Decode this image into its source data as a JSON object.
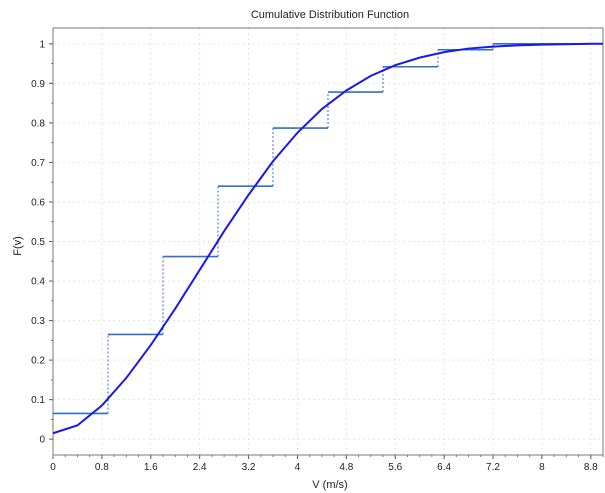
{
  "chart_data": {
    "type": "line",
    "title": "Cumulative Distribution Function",
    "xlabel": "V (m/s)",
    "ylabel": "F(v)",
    "xlim": [
      0,
      9.0
    ],
    "ylim": [
      -0.04,
      1.04
    ],
    "x_ticks": [
      "0",
      "0.8",
      "1.6",
      "2.4",
      "3.2",
      "4",
      "4.8",
      "5.6",
      "6.4",
      "7.2",
      "8",
      "8.8"
    ],
    "y_ticks": [
      "0",
      "0.1",
      "0.2",
      "0.3",
      "0.4",
      "0.5",
      "0.6",
      "0.7",
      "0.8",
      "0.9",
      "1"
    ],
    "grid": true,
    "series": [
      {
        "kind": "step",
        "color": "#2f6fc7",
        "points": [
          {
            "x": 0.0,
            "y": 0.065
          },
          {
            "x": 0.9,
            "y": 0.065
          },
          {
            "x": 0.9,
            "y": 0.265
          },
          {
            "x": 1.8,
            "y": 0.265
          },
          {
            "x": 1.8,
            "y": 0.462
          },
          {
            "x": 2.7,
            "y": 0.462
          },
          {
            "x": 2.7,
            "y": 0.64
          },
          {
            "x": 3.6,
            "y": 0.64
          },
          {
            "x": 3.6,
            "y": 0.787
          },
          {
            "x": 4.5,
            "y": 0.787
          },
          {
            "x": 4.5,
            "y": 0.878
          },
          {
            "x": 5.4,
            "y": 0.878
          },
          {
            "x": 5.4,
            "y": 0.942
          },
          {
            "x": 6.3,
            "y": 0.942
          },
          {
            "x": 6.3,
            "y": 0.985
          },
          {
            "x": 7.2,
            "y": 0.985
          },
          {
            "x": 7.2,
            "y": 1.0
          },
          {
            "x": 9.0,
            "y": 1.0
          }
        ]
      },
      {
        "kind": "curve",
        "color": "#1a1ae6",
        "x": [
          0,
          0.4,
          0.8,
          1.2,
          1.6,
          2.0,
          2.4,
          2.8,
          3.2,
          3.6,
          4.0,
          4.4,
          4.8,
          5.2,
          5.6,
          6.0,
          6.4,
          6.8,
          7.2,
          7.6,
          8.0,
          8.4,
          8.8,
          9.0
        ],
        "y": [
          0.015,
          0.035,
          0.085,
          0.155,
          0.238,
          0.33,
          0.428,
          0.526,
          0.618,
          0.703,
          0.775,
          0.835,
          0.882,
          0.919,
          0.946,
          0.965,
          0.979,
          0.988,
          0.993,
          0.996,
          0.998,
          0.999,
          1.0,
          1.0
        ]
      }
    ]
  }
}
